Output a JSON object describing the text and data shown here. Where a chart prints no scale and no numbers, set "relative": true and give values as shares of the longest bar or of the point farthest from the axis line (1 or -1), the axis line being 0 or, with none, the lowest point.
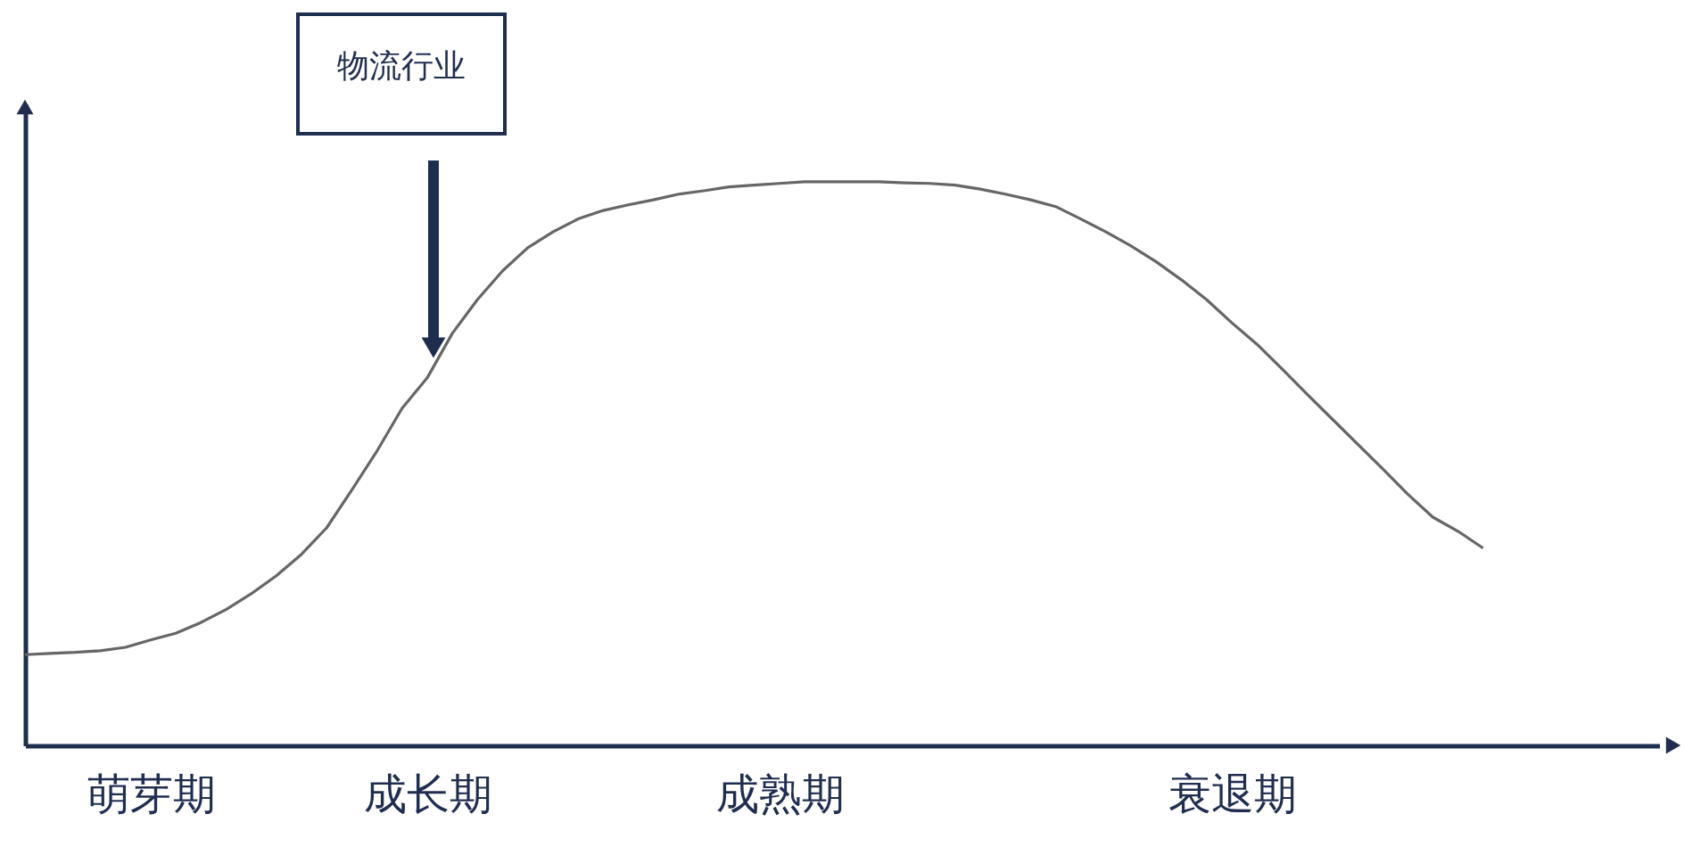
{
  "chart_data": {
    "type": "line",
    "relative": true,
    "tick_labels": "x",
    "legend": false,
    "marker": "none",
    "line_style": "solid",
    "categories": [
      null,
      null,
      null,
      null,
      null,
      "萌芽期",
      null,
      null,
      null,
      null,
      null,
      null,
      null,
      null,
      null,
      null,
      "成长期",
      null,
      null,
      null,
      null,
      null,
      null,
      null,
      null,
      null,
      null,
      null,
      null,
      null,
      "成熟期",
      null,
      null,
      null,
      null,
      null,
      null,
      null,
      null,
      null,
      null,
      null,
      null,
      null,
      null,
      null,
      null,
      null,
      "衰退期",
      null,
      null,
      null,
      null,
      null,
      null,
      null,
      null,
      null,
      null,
      null,
      null,
      null,
      null,
      null,
      null,
      null
    ],
    "series": [
      {
        "color": "#666666",
        "values": [
          0.161,
          0.163,
          0.165,
          0.168,
          0.174,
          0.187,
          0.199,
          0.218,
          0.241,
          0.269,
          0.301,
          0.339,
          0.386,
          0.453,
          0.522,
          0.598,
          0.652,
          0.731,
          0.791,
          0.842,
          0.883,
          0.911,
          0.934,
          0.949,
          0.959,
          0.968,
          0.978,
          0.984,
          0.991,
          0.994,
          0.997,
          1,
          1,
          1,
          1,
          0.998,
          0.997,
          0.994,
          0.987,
          0.978,
          0.968,
          0.956,
          0.934,
          0.911,
          0.886,
          0.858,
          0.826,
          0.791,
          0.75,
          0.712,
          0.668,
          0.623,
          0.579,
          0.535,
          0.491,
          0.446,
          0.405,
          0.38,
          0.35,
          null,
          null,
          null,
          null,
          null,
          null,
          null
        ]
      }
    ],
    "annotations": [
      "物流行业"
    ]
  }
}
